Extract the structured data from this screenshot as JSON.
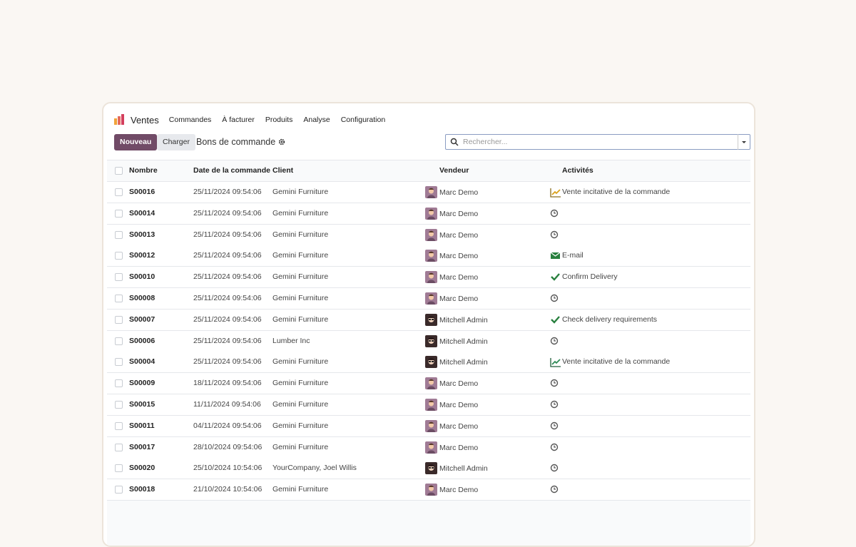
{
  "nav": {
    "app": "Ventes",
    "items": [
      "Commandes",
      "À facturer",
      "Produits",
      "Analyse",
      "Configuration"
    ]
  },
  "actions": {
    "new": "Nouveau",
    "load": "Charger",
    "breadcrumb": "Bons de commande"
  },
  "search": {
    "placeholder": "Rechercher..."
  },
  "table": {
    "columns": [
      "Nombre",
      "Date de la commande",
      "Client",
      "Vendeur",
      "Activités"
    ],
    "rows": [
      {
        "number": "S00016",
        "date": "25/11/2024 09:54:06",
        "client": "Gemini Furniture",
        "salesperson": "Marc Demo",
        "activity": "Vente incitative de la commande"
      },
      {
        "number": "S00014",
        "date": "25/11/2024 09:54:06",
        "client": "Gemini Furniture",
        "salesperson": "Marc Demo"
      },
      {
        "number": "S00013",
        "date": "25/11/2024 09:54:06",
        "client": "Gemini Furniture",
        "salesperson": "Marc Demo"
      },
      {
        "number": "S00012",
        "date": "25/11/2024 09:54:06",
        "client": "Gemini Furniture",
        "salesperson": "Marc Demo",
        "activity": "E-mail"
      },
      {
        "number": "S00010",
        "date": "25/11/2024 09:54:06",
        "client": "Gemini Furniture",
        "salesperson": "Marc Demo",
        "activity": "Confirm Delivery"
      },
      {
        "number": "S00008",
        "date": "25/11/2024 09:54:06",
        "client": "Gemini Furniture",
        "salesperson": "Marc Demo"
      },
      {
        "number": "S00007",
        "date": "25/11/2024 09:54:06",
        "client": "Gemini Furniture",
        "salesperson": "Mitchell Admin",
        "activity": "Check delivery requirements"
      },
      {
        "number": "S00006",
        "date": "25/11/2024 09:54:06",
        "client": "Lumber Inc",
        "salesperson": "Mitchell Admin"
      },
      {
        "number": "S00004",
        "date": "25/11/2024 09:54:06",
        "client": "Gemini Furniture",
        "salesperson": "Mitchell Admin",
        "activity": "Vente incitative de la commande"
      },
      {
        "number": "S00009",
        "date": "18/11/2024 09:54:06",
        "client": "Gemini Furniture",
        "salesperson": "Marc Demo"
      },
      {
        "number": "S00015",
        "date": "11/11/2024 09:54:06",
        "client": "Gemini Furniture",
        "salesperson": "Marc Demo"
      },
      {
        "number": "S00011",
        "date": "04/11/2024 09:54:06",
        "client": "Gemini Furniture",
        "salesperson": "Marc Demo"
      },
      {
        "number": "S00017",
        "date": "28/10/2024 09:54:06",
        "client": "Gemini Furniture",
        "salesperson": "Marc Demo"
      },
      {
        "number": "S00020",
        "date": "25/10/2024 10:54:06",
        "client": "YourCompany, Joel Willis",
        "salesperson": "Mitchell Admin"
      },
      {
        "number": "S00018",
        "date": "21/10/2024 10:54:06",
        "client": "Gemini Furniture",
        "salesperson": "Marc Demo"
      }
    ]
  }
}
